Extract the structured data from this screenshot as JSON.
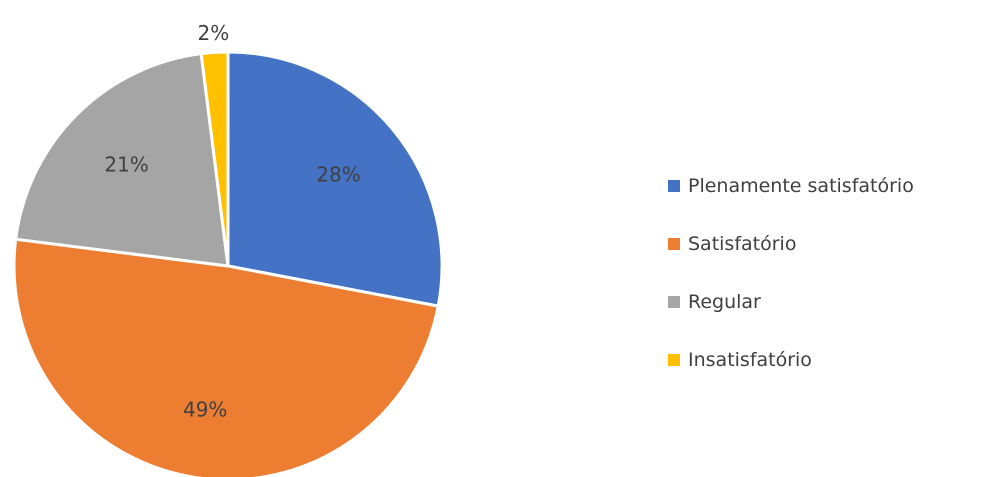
{
  "chart_data": {
    "type": "pie",
    "title": "",
    "categories": [
      "Plenamente satisfatório",
      "Satisfatório",
      "Regular",
      "Insatisfatório"
    ],
    "values": [
      28,
      49,
      21,
      2
    ],
    "data_labels": [
      "28%",
      "49%",
      "21%",
      "2%"
    ],
    "colors": [
      "#4472C4",
      "#ED7D31",
      "#A5A5A5",
      "#FFC000"
    ],
    "legend_position": "right",
    "start_angle": "top, clockwise"
  }
}
